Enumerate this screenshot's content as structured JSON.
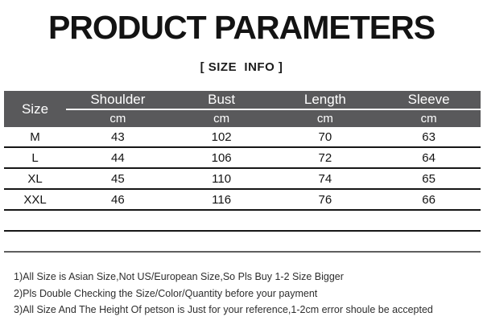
{
  "title": "PRODUCT PARAMETERS",
  "subtitle": "[ SIZE  INFO ]",
  "table": {
    "corner_label": "Size",
    "columns": [
      {
        "label": "Shoulder",
        "unit": "cm"
      },
      {
        "label": "Bust",
        "unit": "cm"
      },
      {
        "label": "Length",
        "unit": "cm"
      },
      {
        "label": "Sleeve",
        "unit": "cm"
      }
    ],
    "rows": [
      {
        "size": "M",
        "shoulder": "43",
        "bust": "102",
        "length": "70",
        "sleeve": "63"
      },
      {
        "size": "L",
        "shoulder": "44",
        "bust": "106",
        "length": "72",
        "sleeve": "64"
      },
      {
        "size": "XL",
        "shoulder": "45",
        "bust": "110",
        "length": "74",
        "sleeve": "65"
      },
      {
        "size": "XXL",
        "shoulder": "46",
        "bust": "116",
        "length": "76",
        "sleeve": "66"
      }
    ],
    "empty_row_count": 2
  },
  "notes": [
    "1)All Size is Asian Size,Not US/European Size,So Pls Buy 1-2 Size Bigger",
    "2)Pls Double Checking the Size/Color/Quantity before your payment",
    "3)All Size And The Height Of petson is Just for your reference,1-2cm error shoule be accepted"
  ],
  "colors": {
    "header_bg": "#59595b",
    "header_text": "#ffffff",
    "header_divider": "#f7f7f7",
    "row_line": "#161616",
    "last_row_line": "#5f5f5f",
    "text": "#1a1a1a",
    "background": "#ffffff"
  }
}
